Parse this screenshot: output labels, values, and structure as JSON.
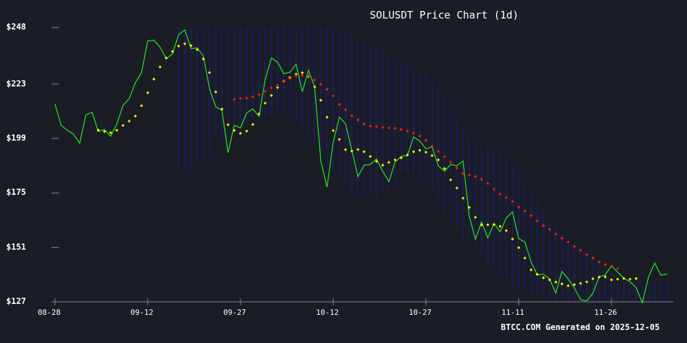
{
  "chart_data": {
    "type": "line",
    "title": "SOLUSDT Price Chart (1d)",
    "xlabel": "",
    "ylabel": "",
    "ylim": [
      127,
      248
    ],
    "y_ticks": [
      "$248",
      "$223",
      "$199",
      "$175",
      "$151",
      "$127"
    ],
    "y_tick_values": [
      248,
      223,
      199,
      175,
      151,
      127
    ],
    "x_ticks": [
      "08-28",
      "09-12",
      "09-27",
      "10-12",
      "10-27",
      "11-11",
      "11-26"
    ],
    "x_start_date": "08-28",
    "grid": false,
    "legend": null,
    "footer": "BTCC.COM Generated on 2025-12-05",
    "colors": {
      "background": "#1b1d26",
      "price": "#22ee22",
      "short_ma": "#ffff00",
      "long_ma": "#ff1a1a",
      "bands": "#1a1a8c",
      "axis": "#888888",
      "text": "#ffffff"
    },
    "series": [
      {
        "name": "Close",
        "style": "line",
        "start_index": 0,
        "values": [
          214.2,
          204.8,
          202.7,
          200.9,
          197.0,
          209.4,
          210.6,
          202.1,
          203.0,
          200.0,
          205.4,
          213.6,
          216.6,
          223.6,
          228.1,
          242.1,
          242.4,
          239.3,
          234.2,
          236.3,
          244.8,
          246.9,
          238.7,
          239.0,
          235.4,
          220.9,
          213.0,
          211.5,
          192.8,
          204.9,
          203.7,
          210.3,
          212.1,
          208.8,
          225.1,
          234.5,
          232.7,
          227.6,
          228.2,
          231.8,
          219.7,
          229.1,
          221.8,
          189.1,
          177.6,
          197.3,
          208.5,
          205.5,
          194.0,
          182.2,
          187.3,
          187.6,
          190.0,
          184.6,
          180.0,
          188.5,
          191.2,
          191.5,
          199.7,
          197.9,
          194.5,
          195.4,
          187.0,
          184.6,
          187.6,
          187.0,
          189.1,
          164.9,
          154.6,
          162.2,
          155.2,
          161.6,
          157.9,
          164.0,
          166.7,
          154.9,
          153.4,
          144.6,
          138.9,
          139.2,
          137.1,
          130.8,
          140.4,
          137.1,
          133.2,
          128.0,
          127.4,
          130.8,
          138.0,
          138.9,
          142.9,
          140.1,
          137.4,
          135.9,
          133.2,
          126.6,
          138.0,
          144.1,
          138.7,
          139.3
        ]
      },
      {
        "name": "Short MA",
        "style": "plus-markers",
        "start_index": 7,
        "values": [
          202.7,
          202.1,
          201.6,
          202.7,
          204.8,
          206.7,
          208.9,
          213.5,
          219.2,
          225.2,
          230.6,
          234.5,
          237.4,
          239.8,
          240.8,
          240.0,
          238.2,
          234.1,
          228.1,
          219.6,
          212.0,
          205.1,
          202.6,
          201.3,
          202.3,
          205.2,
          209.9,
          214.6,
          218.0,
          221.5,
          224.3,
          225.9,
          227.4,
          228.0,
          226.3,
          221.8,
          215.9,
          208.4,
          202.5,
          198.6,
          194.1,
          193.5,
          194.2,
          193.2,
          191.1,
          188.9,
          187.3,
          188.5,
          189.6,
          190.5,
          191.8,
          193.2,
          193.8,
          193.0,
          191.5,
          189.6,
          185.8,
          180.8,
          177.2,
          172.7,
          168.6,
          164.3,
          160.9,
          161.0,
          161.1,
          160.3,
          158.4,
          154.7,
          150.9,
          146.3,
          141.1,
          139.1,
          137.6,
          136.7,
          135.7,
          134.9,
          134.1,
          134.6,
          135.1,
          135.8,
          137.2,
          137.9,
          138.0,
          136.7,
          137.0,
          137.3,
          137.0,
          137.3
        ]
      },
      {
        "name": "Long MA",
        "style": "plus-markers",
        "start_index": 29,
        "values": [
          216.3,
          216.7,
          216.9,
          217.5,
          218.4,
          219.8,
          221.4,
          222.5,
          224.1,
          225.5,
          226.6,
          226.9,
          226.6,
          224.8,
          222.9,
          220.7,
          217.8,
          214.1,
          211.7,
          209.1,
          207.2,
          205.5,
          204.5,
          204.3,
          203.9,
          203.7,
          203.5,
          203.0,
          202.4,
          201.4,
          200.1,
          198.2,
          195.7,
          193.3,
          191.0,
          188.6,
          186.0,
          183.6,
          182.9,
          182.3,
          181.0,
          179.2,
          176.7,
          174.5,
          173.0,
          171.3,
          168.8,
          167.0,
          165.0,
          162.7,
          160.6,
          159.0,
          156.9,
          155.1,
          153.4,
          151.4,
          149.7,
          147.8,
          146.4,
          144.6,
          143.5,
          142.7,
          141.7
        ]
      },
      {
        "name": "Bands",
        "style": "vertical-range",
        "start_index": 20,
        "ranges": [
          [
            248,
            186
          ],
          [
            248,
            186
          ],
          [
            248,
            184
          ],
          [
            248,
            187
          ],
          [
            248,
            189
          ],
          [
            248,
            193
          ],
          [
            248,
            200
          ],
          [
            248,
            199
          ],
          [
            248,
            206
          ],
          [
            248,
            205
          ],
          [
            248,
            205
          ],
          [
            248,
            206
          ],
          [
            248,
            207
          ],
          [
            248,
            209
          ],
          [
            248,
            209
          ],
          [
            248,
            209
          ],
          [
            248,
            211
          ],
          [
            248,
            211
          ],
          [
            248,
            209
          ],
          [
            248,
            206
          ],
          [
            248,
            204
          ],
          [
            248,
            201
          ],
          [
            248,
            196
          ],
          [
            248,
            192
          ],
          [
            248,
            188
          ],
          [
            248,
            186
          ],
          [
            247,
            184
          ],
          [
            246,
            180
          ],
          [
            245,
            175
          ],
          [
            243,
            172
          ],
          [
            242,
            174
          ],
          [
            240,
            175
          ],
          [
            239,
            173
          ],
          [
            238,
            176
          ],
          [
            236,
            176
          ],
          [
            234,
            178
          ],
          [
            233,
            184
          ],
          [
            232,
            184
          ],
          [
            231,
            183
          ],
          [
            229,
            181
          ],
          [
            228,
            180
          ],
          [
            225,
            177
          ],
          [
            222,
            170
          ],
          [
            218,
            166
          ],
          [
            214,
            162
          ],
          [
            208,
            159
          ],
          [
            203,
            154
          ],
          [
            200,
            155
          ],
          [
            197,
            152
          ],
          [
            195,
            148
          ],
          [
            195,
            143
          ],
          [
            195,
            141
          ],
          [
            193,
            139
          ],
          [
            190,
            137
          ],
          [
            187,
            134
          ],
          [
            184,
            133
          ],
          [
            179,
            131
          ],
          [
            176,
            130
          ],
          [
            171,
            129
          ],
          [
            167,
            129
          ],
          [
            163,
            128
          ],
          [
            160,
            127
          ],
          [
            157,
            127
          ],
          [
            154,
            127
          ],
          [
            152,
            127
          ],
          [
            150,
            127
          ],
          [
            148,
            127
          ],
          [
            146,
            127
          ],
          [
            144,
            127
          ],
          [
            142,
            127
          ],
          [
            140,
            127
          ],
          [
            139,
            127
          ],
          [
            138,
            127
          ],
          [
            138,
            127
          ],
          [
            137,
            127
          ],
          [
            136,
            127
          ],
          [
            136,
            127
          ],
          [
            136,
            127
          ],
          [
            136,
            127
          ],
          [
            136,
            127
          ]
        ]
      }
    ]
  }
}
